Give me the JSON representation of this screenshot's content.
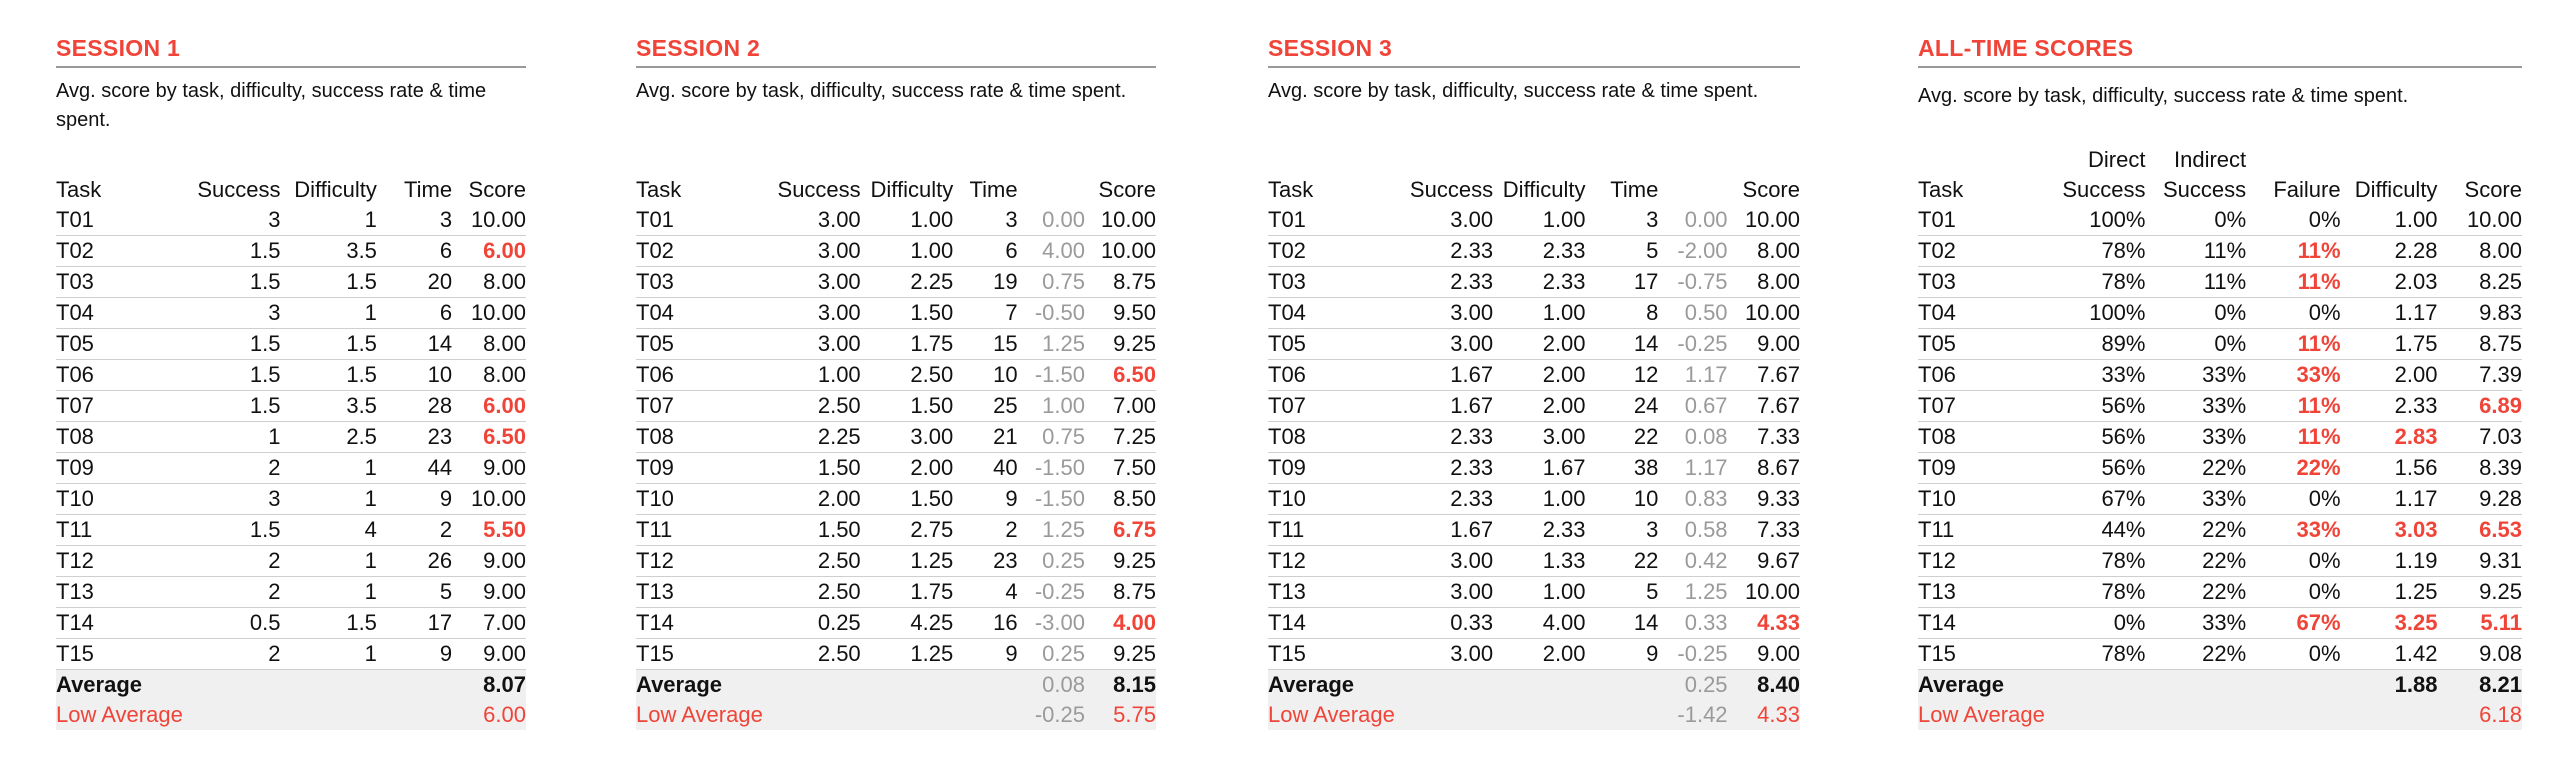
{
  "session1": {
    "title": "SESSION 1",
    "subtitle": "Avg. score by task, difficulty, success rate & time spent.",
    "headers": {
      "task": "Task",
      "success": "Success",
      "difficulty": "Difficulty",
      "time": "Time",
      "score": "Score"
    },
    "rows": [
      {
        "task": "T01",
        "success": "3",
        "difficulty": "1",
        "time": "3",
        "score": "10.00",
        "score_red": false
      },
      {
        "task": "T02",
        "success": "1.5",
        "difficulty": "3.5",
        "time": "6",
        "score": "6.00",
        "score_red": true
      },
      {
        "task": "T03",
        "success": "1.5",
        "difficulty": "1.5",
        "time": "20",
        "score": "8.00",
        "score_red": false
      },
      {
        "task": "T04",
        "success": "3",
        "difficulty": "1",
        "time": "6",
        "score": "10.00",
        "score_red": false
      },
      {
        "task": "T05",
        "success": "1.5",
        "difficulty": "1.5",
        "time": "14",
        "score": "8.00",
        "score_red": false
      },
      {
        "task": "T06",
        "success": "1.5",
        "difficulty": "1.5",
        "time": "10",
        "score": "8.00",
        "score_red": false
      },
      {
        "task": "T07",
        "success": "1.5",
        "difficulty": "3.5",
        "time": "28",
        "score": "6.00",
        "score_red": true
      },
      {
        "task": "T08",
        "success": "1",
        "difficulty": "2.5",
        "time": "23",
        "score": "6.50",
        "score_red": true
      },
      {
        "task": "T09",
        "success": "2",
        "difficulty": "1",
        "time": "44",
        "score": "9.00",
        "score_red": false
      },
      {
        "task": "T10",
        "success": "3",
        "difficulty": "1",
        "time": "9",
        "score": "10.00",
        "score_red": false
      },
      {
        "task": "T11",
        "success": "1.5",
        "difficulty": "4",
        "time": "2",
        "score": "5.50",
        "score_red": true
      },
      {
        "task": "T12",
        "success": "2",
        "difficulty": "1",
        "time": "26",
        "score": "9.00",
        "score_red": false
      },
      {
        "task": "T13",
        "success": "2",
        "difficulty": "1",
        "time": "5",
        "score": "9.00",
        "score_red": false
      },
      {
        "task": "T14",
        "success": "0.5",
        "difficulty": "1.5",
        "time": "17",
        "score": "7.00",
        "score_red": false
      },
      {
        "task": "T15",
        "success": "2",
        "difficulty": "1",
        "time": "9",
        "score": "9.00",
        "score_red": false
      }
    ],
    "average": {
      "label": "Average",
      "score": "8.07"
    },
    "low_average": {
      "label": "Low Average",
      "score": "6.00"
    }
  },
  "session2": {
    "title": "SESSION 2",
    "subtitle": "Avg. score by task, difficulty, success rate & time spent.",
    "headers": {
      "task": "Task",
      "success": "Success",
      "difficulty": "Difficulty",
      "time": "Time",
      "score": "Score"
    },
    "rows": [
      {
        "task": "T01",
        "success": "3.00",
        "difficulty": "1.00",
        "time": "3",
        "delta": "0.00",
        "score": "10.00",
        "score_red": false
      },
      {
        "task": "T02",
        "success": "3.00",
        "difficulty": "1.00",
        "time": "6",
        "delta": "4.00",
        "score": "10.00",
        "score_red": false
      },
      {
        "task": "T03",
        "success": "3.00",
        "difficulty": "2.25",
        "time": "19",
        "delta": "0.75",
        "score": "8.75",
        "score_red": false
      },
      {
        "task": "T04",
        "success": "3.00",
        "difficulty": "1.50",
        "time": "7",
        "delta": "-0.50",
        "score": "9.50",
        "score_red": false
      },
      {
        "task": "T05",
        "success": "3.00",
        "difficulty": "1.75",
        "time": "15",
        "delta": "1.25",
        "score": "9.25",
        "score_red": false
      },
      {
        "task": "T06",
        "success": "1.00",
        "difficulty": "2.50",
        "time": "10",
        "delta": "-1.50",
        "score": "6.50",
        "score_red": true
      },
      {
        "task": "T07",
        "success": "2.50",
        "difficulty": "1.50",
        "time": "25",
        "delta": "1.00",
        "score": "7.00",
        "score_red": false
      },
      {
        "task": "T08",
        "success": "2.25",
        "difficulty": "3.00",
        "time": "21",
        "delta": "0.75",
        "score": "7.25",
        "score_red": false
      },
      {
        "task": "T09",
        "success": "1.50",
        "difficulty": "2.00",
        "time": "40",
        "delta": "-1.50",
        "score": "7.50",
        "score_red": false
      },
      {
        "task": "T10",
        "success": "2.00",
        "difficulty": "1.50",
        "time": "9",
        "delta": "-1.50",
        "score": "8.50",
        "score_red": false
      },
      {
        "task": "T11",
        "success": "1.50",
        "difficulty": "2.75",
        "time": "2",
        "delta": "1.25",
        "score": "6.75",
        "score_red": true
      },
      {
        "task": "T12",
        "success": "2.50",
        "difficulty": "1.25",
        "time": "23",
        "delta": "0.25",
        "score": "9.25",
        "score_red": false
      },
      {
        "task": "T13",
        "success": "2.50",
        "difficulty": "1.75",
        "time": "4",
        "delta": "-0.25",
        "score": "8.75",
        "score_red": false
      },
      {
        "task": "T14",
        "success": "0.25",
        "difficulty": "4.25",
        "time": "16",
        "delta": "-3.00",
        "score": "4.00",
        "score_red": true
      },
      {
        "task": "T15",
        "success": "2.50",
        "difficulty": "1.25",
        "time": "9",
        "delta": "0.25",
        "score": "9.25",
        "score_red": false
      }
    ],
    "average": {
      "label": "Average",
      "delta": "0.08",
      "score": "8.15"
    },
    "low_average": {
      "label": "Low Average",
      "delta": "-0.25",
      "score": "5.75"
    }
  },
  "session3": {
    "title": "SESSION 3",
    "subtitle": "Avg. score by task, difficulty, success rate & time spent.",
    "headers": {
      "task": "Task",
      "success": "Success",
      "difficulty": "Difficulty",
      "time": "Time",
      "score": "Score"
    },
    "rows": [
      {
        "task": "T01",
        "success": "3.00",
        "difficulty": "1.00",
        "time": "3",
        "delta": "0.00",
        "score": "10.00",
        "score_red": false
      },
      {
        "task": "T02",
        "success": "2.33",
        "difficulty": "2.33",
        "time": "5",
        "delta": "-2.00",
        "score": "8.00",
        "score_red": false
      },
      {
        "task": "T03",
        "success": "2.33",
        "difficulty": "2.33",
        "time": "17",
        "delta": "-0.75",
        "score": "8.00",
        "score_red": false
      },
      {
        "task": "T04",
        "success": "3.00",
        "difficulty": "1.00",
        "time": "8",
        "delta": "0.50",
        "score": "10.00",
        "score_red": false
      },
      {
        "task": "T05",
        "success": "3.00",
        "difficulty": "2.00",
        "time": "14",
        "delta": "-0.25",
        "score": "9.00",
        "score_red": false
      },
      {
        "task": "T06",
        "success": "1.67",
        "difficulty": "2.00",
        "time": "12",
        "delta": "1.17",
        "score": "7.67",
        "score_red": false
      },
      {
        "task": "T07",
        "success": "1.67",
        "difficulty": "2.00",
        "time": "24",
        "delta": "0.67",
        "score": "7.67",
        "score_red": false
      },
      {
        "task": "T08",
        "success": "2.33",
        "difficulty": "3.00",
        "time": "22",
        "delta": "0.08",
        "score": "7.33",
        "score_red": false
      },
      {
        "task": "T09",
        "success": "2.33",
        "difficulty": "1.67",
        "time": "38",
        "delta": "1.17",
        "score": "8.67",
        "score_red": false
      },
      {
        "task": "T10",
        "success": "2.33",
        "difficulty": "1.00",
        "time": "10",
        "delta": "0.83",
        "score": "9.33",
        "score_red": false
      },
      {
        "task": "T11",
        "success": "1.67",
        "difficulty": "2.33",
        "time": "3",
        "delta": "0.58",
        "score": "7.33",
        "score_red": false
      },
      {
        "task": "T12",
        "success": "3.00",
        "difficulty": "1.33",
        "time": "22",
        "delta": "0.42",
        "score": "9.67",
        "score_red": false
      },
      {
        "task": "T13",
        "success": "3.00",
        "difficulty": "1.00",
        "time": "5",
        "delta": "1.25",
        "score": "10.00",
        "score_red": false
      },
      {
        "task": "T14",
        "success": "0.33",
        "difficulty": "4.00",
        "time": "14",
        "delta": "0.33",
        "score": "4.33",
        "score_red": true
      },
      {
        "task": "T15",
        "success": "3.00",
        "difficulty": "2.00",
        "time": "9",
        "delta": "-0.25",
        "score": "9.00",
        "score_red": false
      }
    ],
    "average": {
      "label": "Average",
      "delta": "0.25",
      "score": "8.40"
    },
    "low_average": {
      "label": "Low Average",
      "delta": "-1.42",
      "score": "4.33"
    }
  },
  "alltime": {
    "title": "ALL-TIME SCORES",
    "subtitle": "Avg. score by task, difficulty, success rate & time spent.",
    "headers": {
      "task": "Task",
      "direct_1": "Direct",
      "direct_2": "Success",
      "indirect_1": "Indirect",
      "indirect_2": "Success",
      "failure": "Failure",
      "difficulty": "Difficulty",
      "score": "Score"
    },
    "rows": [
      {
        "task": "T01",
        "direct": "100%",
        "indirect": "0%",
        "failure": "0%",
        "failure_red": false,
        "difficulty": "1.00",
        "difficulty_red": false,
        "score": "10.00",
        "score_red": false
      },
      {
        "task": "T02",
        "direct": "78%",
        "indirect": "11%",
        "failure": "11%",
        "failure_red": true,
        "difficulty": "2.28",
        "difficulty_red": false,
        "score": "8.00",
        "score_red": false
      },
      {
        "task": "T03",
        "direct": "78%",
        "indirect": "11%",
        "failure": "11%",
        "failure_red": true,
        "difficulty": "2.03",
        "difficulty_red": false,
        "score": "8.25",
        "score_red": false
      },
      {
        "task": "T04",
        "direct": "100%",
        "indirect": "0%",
        "failure": "0%",
        "failure_red": false,
        "difficulty": "1.17",
        "difficulty_red": false,
        "score": "9.83",
        "score_red": false
      },
      {
        "task": "T05",
        "direct": "89%",
        "indirect": "0%",
        "failure": "11%",
        "failure_red": true,
        "difficulty": "1.75",
        "difficulty_red": false,
        "score": "8.75",
        "score_red": false
      },
      {
        "task": "T06",
        "direct": "33%",
        "indirect": "33%",
        "failure": "33%",
        "failure_red": true,
        "difficulty": "2.00",
        "difficulty_red": false,
        "score": "7.39",
        "score_red": false
      },
      {
        "task": "T07",
        "direct": "56%",
        "indirect": "33%",
        "failure": "11%",
        "failure_red": true,
        "difficulty": "2.33",
        "difficulty_red": false,
        "score": "6.89",
        "score_red": true
      },
      {
        "task": "T08",
        "direct": "56%",
        "indirect": "33%",
        "failure": "11%",
        "failure_red": true,
        "difficulty": "2.83",
        "difficulty_red": true,
        "score": "7.03",
        "score_red": false
      },
      {
        "task": "T09",
        "direct": "56%",
        "indirect": "22%",
        "failure": "22%",
        "failure_red": true,
        "difficulty": "1.56",
        "difficulty_red": false,
        "score": "8.39",
        "score_red": false
      },
      {
        "task": "T10",
        "direct": "67%",
        "indirect": "33%",
        "failure": "0%",
        "failure_red": false,
        "difficulty": "1.17",
        "difficulty_red": false,
        "score": "9.28",
        "score_red": false
      },
      {
        "task": "T11",
        "direct": "44%",
        "indirect": "22%",
        "failure": "33%",
        "failure_red": true,
        "difficulty": "3.03",
        "difficulty_red": true,
        "score": "6.53",
        "score_red": true
      },
      {
        "task": "T12",
        "direct": "78%",
        "indirect": "22%",
        "failure": "0%",
        "failure_red": false,
        "difficulty": "1.19",
        "difficulty_red": false,
        "score": "9.31",
        "score_red": false
      },
      {
        "task": "T13",
        "direct": "78%",
        "indirect": "22%",
        "failure": "0%",
        "failure_red": false,
        "difficulty": "1.25",
        "difficulty_red": false,
        "score": "9.25",
        "score_red": false
      },
      {
        "task": "T14",
        "direct": "0%",
        "indirect": "33%",
        "failure": "67%",
        "failure_red": true,
        "difficulty": "3.25",
        "difficulty_red": true,
        "score": "5.11",
        "score_red": true
      },
      {
        "task": "T15",
        "direct": "78%",
        "indirect": "22%",
        "failure": "0%",
        "failure_red": false,
        "difficulty": "1.42",
        "difficulty_red": false,
        "score": "9.08",
        "score_red": false
      }
    ],
    "average": {
      "label": "Average",
      "difficulty": "1.88",
      "score": "8.21"
    },
    "low_average": {
      "label": "Low Average",
      "score": "6.18"
    }
  },
  "colors": {
    "accent": "#f04438",
    "muted": "#9a9a9a",
    "row_fill": "#f0f0f0"
  }
}
